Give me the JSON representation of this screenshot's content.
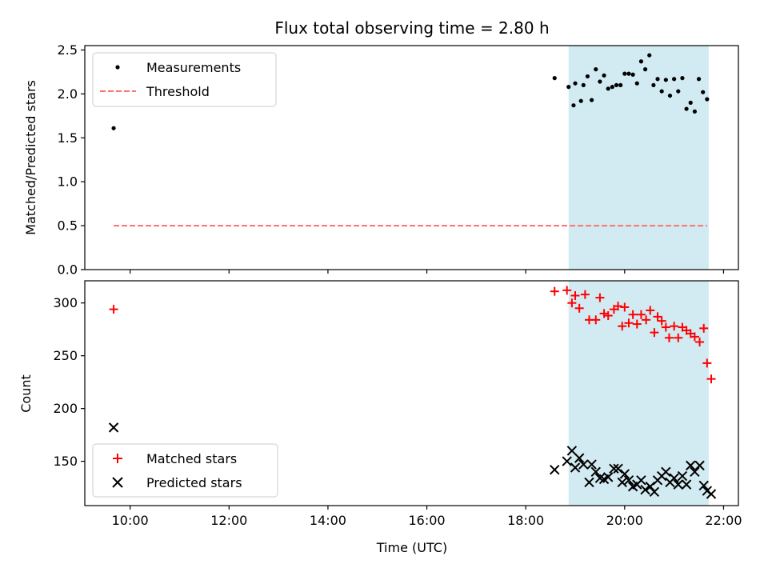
{
  "colors": {
    "shade": "#add8e6",
    "threshold": "#ff6f6f",
    "matched": "#ff0000",
    "predicted": "#000000",
    "measurement": "#000000"
  },
  "chart_data": [
    {
      "type": "scatter",
      "panel": "top",
      "title": "Flux total observing time = 2.80 h",
      "xlabel": "",
      "ylabel": "Matched/Predicted stars",
      "ylim": [
        0,
        2.55
      ],
      "yticks": [
        0.0,
        0.5,
        1.0,
        1.5,
        2.0,
        2.5
      ],
      "ytick_labels": [
        "0.0",
        "0.5",
        "1.0",
        "1.5",
        "2.0",
        "2.5"
      ],
      "shaded_span": [
        "18:52",
        "21:42"
      ],
      "legend": {
        "placement": "upper-left",
        "entries": [
          "Measurements",
          "Threshold"
        ]
      },
      "series": [
        {
          "name": "Measurements",
          "marker": "dot",
          "x": [
            "09:40",
            "18:35",
            "18:52",
            "18:58",
            "19:00",
            "19:07",
            "19:10",
            "19:15",
            "19:20",
            "19:25",
            "19:30",
            "19:35",
            "19:40",
            "19:45",
            "19:50",
            "19:55",
            "20:00",
            "20:05",
            "20:10",
            "20:15",
            "20:20",
            "20:25",
            "20:30",
            "20:35",
            "20:40",
            "20:45",
            "20:50",
            "20:55",
            "21:00",
            "21:05",
            "21:10",
            "21:15",
            "21:20",
            "21:25",
            "21:30",
            "21:35",
            "21:40"
          ],
          "y": [
            1.61,
            2.18,
            2.08,
            1.87,
            2.12,
            1.92,
            2.1,
            2.2,
            1.93,
            2.28,
            2.14,
            2.21,
            2.06,
            2.08,
            2.1,
            2.1,
            2.23,
            2.23,
            2.22,
            2.12,
            2.37,
            2.28,
            2.44,
            2.1,
            2.17,
            2.03,
            2.16,
            1.98,
            2.17,
            2.03,
            2.18,
            1.83,
            1.9,
            1.8,
            2.17,
            2.02,
            1.94
          ]
        },
        {
          "name": "Threshold",
          "marker": "dashed-line",
          "x": [
            "09:40",
            "21:40"
          ],
          "y": [
            0.5,
            0.5
          ]
        }
      ]
    },
    {
      "type": "scatter",
      "panel": "bottom",
      "title": "",
      "xlabel": "Time (UTC)",
      "ylabel": "Count",
      "xlim": [
        "09:05",
        "22:18"
      ],
      "xticks": [
        "10:00",
        "12:00",
        "14:00",
        "16:00",
        "18:00",
        "20:00",
        "22:00"
      ],
      "ylim": [
        108,
        321
      ],
      "yticks": [
        150,
        200,
        250,
        300
      ],
      "ytick_labels": [
        "150",
        "200",
        "250",
        "300"
      ],
      "shaded_span": [
        "18:52",
        "21:42"
      ],
      "legend": {
        "placement": "lower-left",
        "entries": [
          "Matched stars",
          "Predicted stars"
        ]
      },
      "series": [
        {
          "name": "Matched stars",
          "marker": "plus",
          "x": [
            "09:40",
            "18:35",
            "18:50",
            "18:56",
            "19:00",
            "19:05",
            "19:12",
            "19:17",
            "19:25",
            "19:30",
            "19:35",
            "19:40",
            "19:47",
            "19:52",
            "19:57",
            "20:00",
            "20:05",
            "20:10",
            "20:15",
            "20:20",
            "20:26",
            "20:31",
            "20:36",
            "20:40",
            "20:45",
            "20:50",
            "20:54",
            "21:00",
            "21:05",
            "21:10",
            "21:15",
            "21:20",
            "21:25",
            "21:31",
            "21:36",
            "21:40",
            "21:45"
          ],
          "y": [
            294,
            311,
            312,
            300,
            307,
            295,
            308,
            284,
            284,
            305,
            290,
            288,
            294,
            297,
            278,
            296,
            281,
            289,
            280,
            289,
            284,
            293,
            272,
            287,
            283,
            277,
            267,
            278,
            267,
            277,
            274,
            271,
            268,
            263,
            276,
            243,
            228
          ]
        },
        {
          "name": "Predicted stars",
          "marker": "x",
          "x": [
            "09:40",
            "18:35",
            "18:50",
            "18:56",
            "19:00",
            "19:05",
            "19:10",
            "19:17",
            "19:20",
            "19:25",
            "19:30",
            "19:35",
            "19:40",
            "19:47",
            "19:52",
            "19:57",
            "20:00",
            "20:05",
            "20:10",
            "20:15",
            "20:20",
            "20:25",
            "20:31",
            "20:36",
            "20:40",
            "20:45",
            "20:50",
            "20:55",
            "21:00",
            "21:05",
            "21:10",
            "21:15",
            "21:20",
            "21:25",
            "21:31",
            "21:36",
            "21:40",
            "21:45"
          ],
          "y": [
            182,
            142,
            150,
            160,
            144,
            153,
            147,
            130,
            147,
            140,
            134,
            133,
            135,
            143,
            143,
            130,
            138,
            132,
            126,
            128,
            132,
            123,
            126,
            121,
            132,
            136,
            140,
            130,
            134,
            128,
            136,
            128,
            146,
            140,
            146,
            127,
            122,
            119
          ]
        }
      ]
    }
  ]
}
